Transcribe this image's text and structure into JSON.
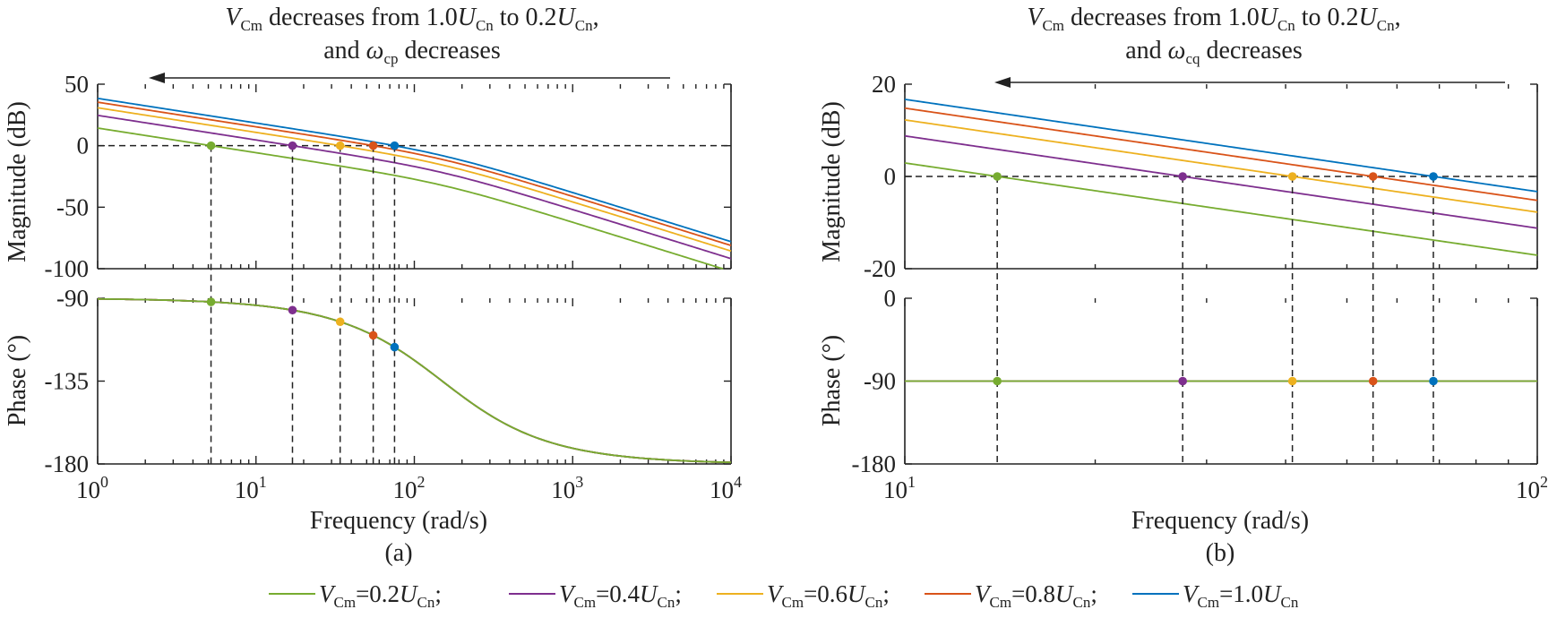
{
  "colors": {
    "0.2": "#77AC30",
    "0.4": "#7E2F8E",
    "0.6": "#EDB120",
    "0.8": "#D95319",
    "1.0": "#0072BD"
  },
  "legend": [
    {
      "key": "0.2",
      "label": "V_Cm=0.2U_Cn;"
    },
    {
      "key": "0.4",
      "label": "V_Cm=0.4U_Cn;"
    },
    {
      "key": "0.6",
      "label": "V_Cm=0.6U_Cn;"
    },
    {
      "key": "0.8",
      "label": "V_Cm=0.8U_Cn;"
    },
    {
      "key": "1.0",
      "label": "V_Cm=1.0U_Cn"
    }
  ],
  "chart_data": [
    {
      "type": "line",
      "panel": "(a)",
      "annotation": {
        "line1_var": "V",
        "line1_var_sub": "Cm",
        "line1_mid": " decreases from 1.0",
        "line1_u1": "U",
        "line1_u1_sub": "Cn",
        "line1_mid2": " to 0.2",
        "line1_u2": "U",
        "line1_u2_sub": "Cn",
        "line1_end": ",",
        "line2_pre": "and ",
        "line2_sym": "ω",
        "line2_sym_sub": "cp",
        "line2_post": " decreases"
      },
      "xlabel": "Frequency (rad/s)",
      "xscale": "log",
      "xlim": [
        1,
        10000
      ],
      "xticks": [
        1,
        10,
        100,
        1000,
        10000
      ],
      "xtick_exp": [
        "0",
        "1",
        "2",
        "3",
        "4"
      ],
      "magnitude": {
        "ylabel": "Magnitude (dB)",
        "ylim": [
          -100,
          50
        ],
        "yticks": [
          "50",
          "0",
          "-50",
          "-100"
        ],
        "tick_values": [
          50,
          0,
          -50,
          -100
        ],
        "model": "integrator_with_pole",
        "pole_rad_s": 150
      },
      "phase": {
        "ylabel": "Phase (°)",
        "ylim": [
          -180,
          -90
        ],
        "yticks": [
          "-90",
          "-135",
          "-180"
        ],
        "tick_values": [
          -90,
          -135,
          -180
        ]
      },
      "series": [
        {
          "key": "0.2",
          "crossover_rad_s": 5.2
        },
        {
          "key": "0.4",
          "crossover_rad_s": 17
        },
        {
          "key": "0.6",
          "crossover_rad_s": 34
        },
        {
          "key": "0.8",
          "crossover_rad_s": 55
        },
        {
          "key": "1.0",
          "crossover_rad_s": 75
        }
      ]
    },
    {
      "type": "line",
      "panel": "(b)",
      "annotation": {
        "line1_var": "V",
        "line1_var_sub": "Cm",
        "line1_mid": " decreases from 1.0",
        "line1_u1": "U",
        "line1_u1_sub": "Cn",
        "line1_mid2": " to 0.2",
        "line1_u2": "U",
        "line1_u2_sub": "Cn",
        "line1_end": ",",
        "line2_pre": "and ",
        "line2_sym": "ω",
        "line2_sym_sub": "cq",
        "line2_post": " decreases"
      },
      "xlabel": "Frequency (rad/s)",
      "xscale": "log",
      "xlim": [
        10,
        100
      ],
      "xticks": [
        10,
        100
      ],
      "xtick_exp": [
        "1",
        "2"
      ],
      "magnitude": {
        "ylabel": "Magnitude (dB)",
        "ylim": [
          -20,
          20
        ],
        "yticks": [
          "20",
          "0",
          "-20"
        ],
        "tick_values": [
          20,
          0,
          -20
        ],
        "model": "pure_integrator"
      },
      "phase": {
        "ylabel": "Phase (°)",
        "ylim": [
          -180,
          0
        ],
        "yticks": [
          "0",
          "-90",
          "-180"
        ],
        "tick_values": [
          0,
          -90,
          -180
        ],
        "constant_deg": -90
      },
      "series": [
        {
          "key": "0.2",
          "crossover_rad_s": 14
        },
        {
          "key": "0.4",
          "crossover_rad_s": 27.5
        },
        {
          "key": "0.6",
          "crossover_rad_s": 41
        },
        {
          "key": "0.8",
          "crossover_rad_s": 55
        },
        {
          "key": "1.0",
          "crossover_rad_s": 68.5
        }
      ]
    }
  ],
  "captions": [
    "(a)",
    "(b)"
  ]
}
